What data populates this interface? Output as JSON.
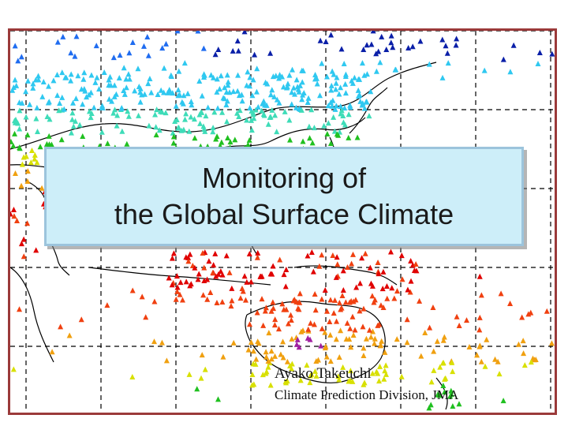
{
  "slide": {
    "title_line1": "Monitoring of",
    "title_line2": "the Global Surface Climate",
    "author": "Ayako Takeuchi",
    "affiliation": "Climate Prediction Division, JMA"
  },
  "map": {
    "description_colors": {
      "frame": "#9b3a3a",
      "title_box_fill": "#cdeef9",
      "coastline": "#000000"
    },
    "station_palette": [
      "#0a1fa8",
      "#1f6cf0",
      "#2fc8f0",
      "#3edcb8",
      "#20c020",
      "#d8e000",
      "#f0a010",
      "#f04010",
      "#e00000",
      "#a020a0"
    ]
  }
}
